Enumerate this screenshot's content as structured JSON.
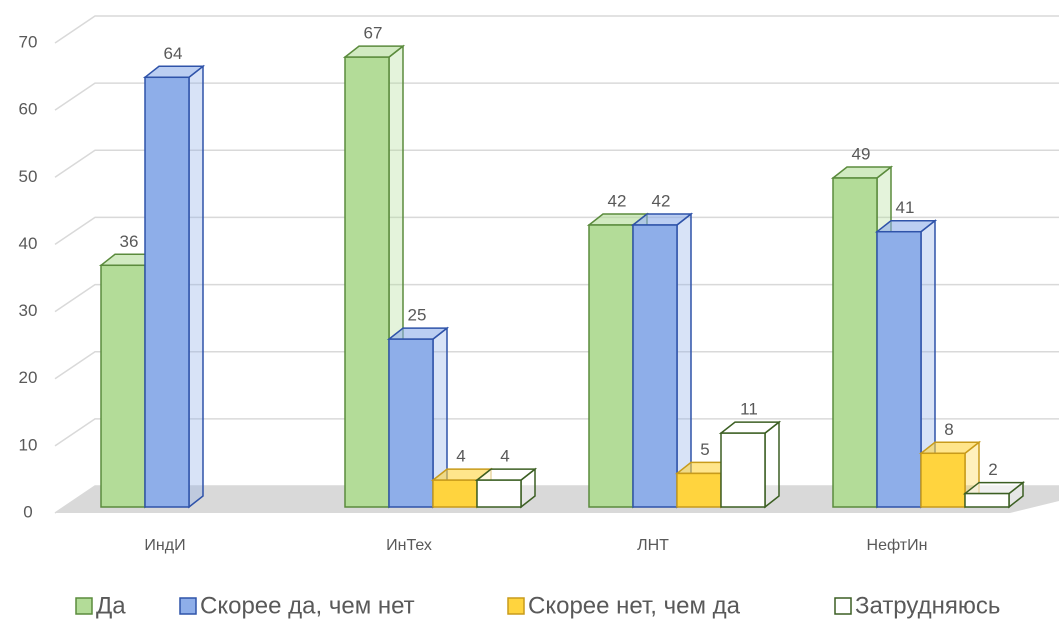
{
  "chart_data": {
    "type": "bar3d",
    "categories": [
      "ИндИ",
      "ИнТех",
      "ЛНТ",
      "НефтИн"
    ],
    "series": [
      {
        "name": "Да",
        "color": "#b3dc98",
        "edge": "#5b8b3d",
        "values": [
          36,
          67,
          42,
          49
        ]
      },
      {
        "name": "Скорее да, чем нет",
        "color": "#8eaee9",
        "edge": "#2f53a9",
        "values": [
          64,
          25,
          42,
          41
        ]
      },
      {
        "name": "Скорее нет, чем да",
        "color": "#ffd43e",
        "edge": "#c89b1b",
        "values": [
          null,
          4,
          5,
          8
        ]
      },
      {
        "name": "Затрудняюсь",
        "color": "#ffffff",
        "edge": "#3c5f23",
        "values": [
          null,
          4,
          11,
          2
        ]
      }
    ],
    "ylim": [
      0,
      70
    ],
    "yticks": [
      0,
      10,
      20,
      30,
      40,
      50,
      60,
      70
    ],
    "grid": true,
    "legend": "bottom"
  }
}
